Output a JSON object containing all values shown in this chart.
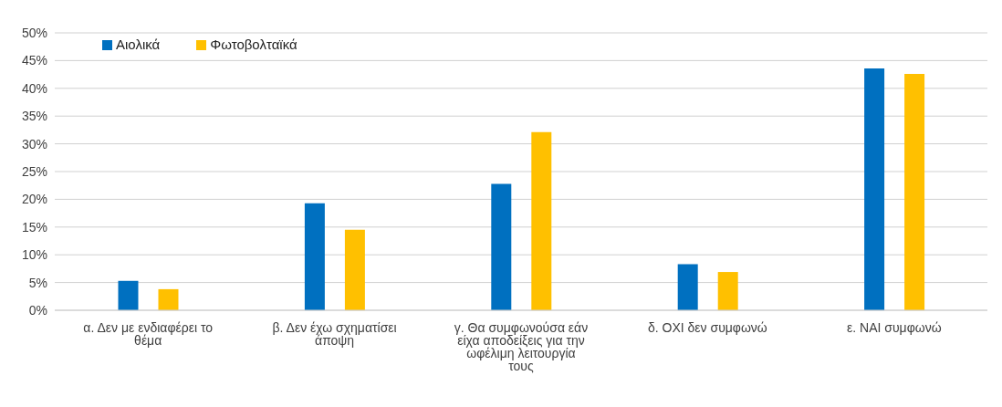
{
  "chart_data": {
    "type": "bar",
    "categories": [
      "α. Δεν με ενδιαφέρει το θέμα",
      "β. Δεν έχω σχηματίσει άποψη",
      "γ. Θα συμφωνούσα εάν είχα αποδείξεις για την ωφέλιμη λειτουργία τους",
      "δ. ΟΧΙ δεν συμφωνώ",
      "ε. ΝΑΙ συμφωνώ"
    ],
    "series": [
      {
        "name": "Αιολικά",
        "color": "#0070c0",
        "values": [
          5.3,
          19.3,
          22.8,
          8.3,
          43.6
        ]
      },
      {
        "name": "Φωτοβολταϊκά",
        "color": "#ffc000",
        "values": [
          3.8,
          14.5,
          32.1,
          6.9,
          42.6
        ]
      }
    ],
    "ylim": [
      0,
      50
    ],
    "yticks": [
      {
        "value": 0,
        "label": "0%"
      },
      {
        "value": 5,
        "label": "5%"
      },
      {
        "value": 10,
        "label": "10%"
      },
      {
        "value": 15,
        "label": "15%"
      },
      {
        "value": 20,
        "label": "20%"
      },
      {
        "value": 25,
        "label": "25%"
      },
      {
        "value": 30,
        "label": "30%"
      },
      {
        "value": 35,
        "label": "35%"
      },
      {
        "value": 40,
        "label": "40%"
      },
      {
        "value": 45,
        "label": "45%"
      },
      {
        "value": 50,
        "label": "50%"
      }
    ],
    "grid": "y",
    "legend": "top left"
  }
}
